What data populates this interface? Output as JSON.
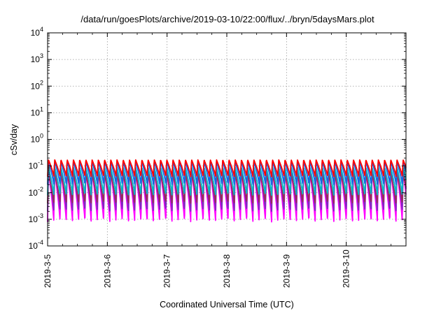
{
  "chart_data": {
    "type": "area",
    "title": "/data/run/goesPlots/archive/2019-03-10/22:00/flux/../bryn/5daysMars.plot",
    "xlabel": "Coordinated Universal Time (UTC)",
    "ylabel": "cSv/day",
    "y_scale": "log",
    "ylim": [
      0.0001,
      10000
    ],
    "xlim": [
      "2019-03-05 00:00",
      "2019-03-11 00:00"
    ],
    "x_ticks": [
      "2019-3-5",
      "2019-3-6",
      "2019-3-7",
      "2019-3-8",
      "2019-3-9",
      "2019-3-10"
    ],
    "y_ticks": [
      {
        "value": 0.0001,
        "base": "10",
        "exp": "-4"
      },
      {
        "value": 0.001,
        "base": "10",
        "exp": "-3"
      },
      {
        "value": 0.01,
        "base": "10",
        "exp": "-2"
      },
      {
        "value": 0.1,
        "base": "10",
        "exp": "-1"
      },
      {
        "value": 1,
        "base": "10",
        "exp": "0"
      },
      {
        "value": 10,
        "base": "10",
        "exp": "1"
      },
      {
        "value": 100,
        "base": "10",
        "exp": "2"
      },
      {
        "value": 1000,
        "base": "10",
        "exp": "3"
      },
      {
        "value": 10000,
        "base": "10",
        "exp": "4"
      }
    ],
    "grid": true,
    "pattern": "sawtooth pulses approximately every 2.5 hours; each pulse rises quickly to a peak then decays",
    "pulses_per_day": 9.6,
    "series": [
      {
        "color": "#ff00ff",
        "peak": 0.06,
        "trough": 0.0008
      },
      {
        "color": "#7b2cbf",
        "peak": 0.07,
        "trough": 0.002
      },
      {
        "color": "#9a2a5a",
        "peak": 0.05,
        "trough": 0.004
      },
      {
        "color": "#00b8c8",
        "peak": 0.09,
        "trough": 0.008
      },
      {
        "color": "#1565e8",
        "peak": 0.15,
        "trough": 0.02
      },
      {
        "color": "#ff0000",
        "peak": 0.17,
        "trough": 0.04
      }
    ]
  }
}
